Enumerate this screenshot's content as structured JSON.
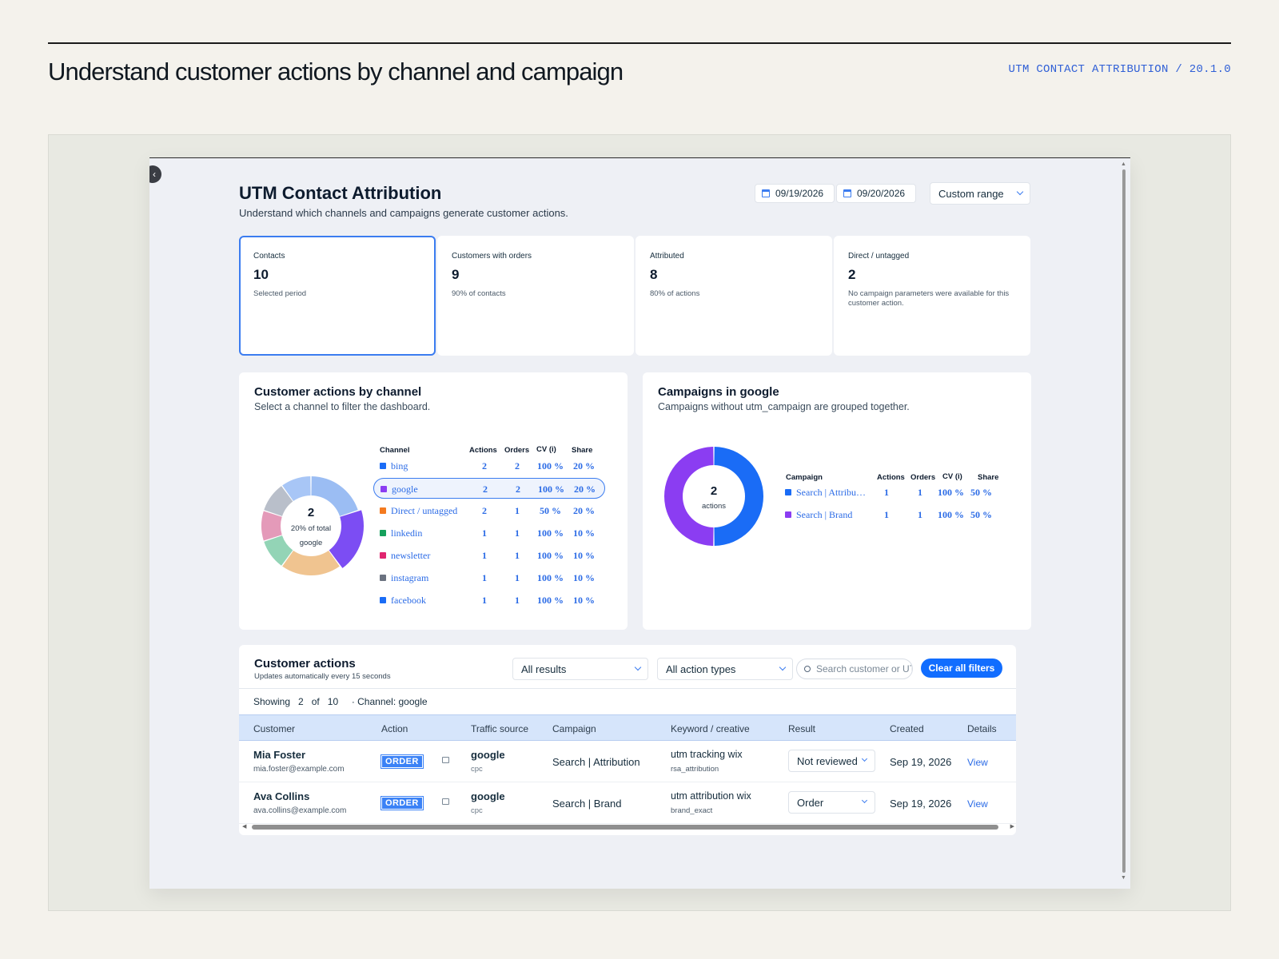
{
  "header": {
    "title": "Understand customer actions by channel and campaign",
    "meta": "UTM CONTACT ATTRIBUTION / 20.1.0"
  },
  "app": {
    "title": "UTM Contact Attribution",
    "subtitle": "Understand which channels and campaigns generate customer actions.",
    "date_from": "09/19/2026",
    "date_to": "09/20/2026",
    "range": "Custom range"
  },
  "stats": [
    {
      "label": "Contacts",
      "value": "10",
      "caption": "Selected period",
      "selected": true
    },
    {
      "label": "Customers with orders",
      "value": "9",
      "caption": "90% of contacts"
    },
    {
      "label": "Attributed",
      "value": "8",
      "caption": "80% of actions"
    },
    {
      "label": "Direct / untagged",
      "value": "2",
      "caption": "No campaign parameters were available for this customer action."
    }
  ],
  "channels_card": {
    "title": "Customer actions by channel",
    "subtitle": "Select a channel to filter the dashboard.",
    "donut_center_value": "2",
    "donut_center_caption": "20% of total",
    "donut_center_channel": "google",
    "columns": [
      "Channel",
      "Actions",
      "Orders",
      "CV (i)",
      "Share"
    ],
    "rows": [
      {
        "channel": "bing",
        "actions": "2",
        "orders": "2",
        "cv": "100 %",
        "share": "20 %",
        "color": "#1a6cf6",
        "donut_color": "#9bbdf3",
        "selected": false
      },
      {
        "channel": "google",
        "actions": "2",
        "orders": "2",
        "cv": "100 %",
        "share": "20 %",
        "color": "#8b3df2",
        "donut_color": "#7c4df3",
        "selected": true
      },
      {
        "channel": "Direct / untagged",
        "actions": "2",
        "orders": "1",
        "cv": "50 %",
        "share": "20 %",
        "color": "#f47a1f",
        "donut_color": "#f0c490",
        "selected": false
      },
      {
        "channel": "linkedin",
        "actions": "1",
        "orders": "1",
        "cv": "100 %",
        "share": "10 %",
        "color": "#15a05c",
        "donut_color": "#93d4b6",
        "selected": false
      },
      {
        "channel": "newsletter",
        "actions": "1",
        "orders": "1",
        "cv": "100 %",
        "share": "10 %",
        "color": "#e0256f",
        "donut_color": "#e49ab9",
        "selected": false
      },
      {
        "channel": "instagram",
        "actions": "1",
        "orders": "1",
        "cv": "100 %",
        "share": "10 %",
        "color": "#6b7280",
        "donut_color": "#b9bfca",
        "selected": false
      },
      {
        "channel": "facebook",
        "actions": "1",
        "orders": "1",
        "cv": "100 %",
        "share": "10 %",
        "color": "#1a6cf6",
        "donut_color": "#a8c6f6",
        "selected": false
      }
    ]
  },
  "campaigns_card": {
    "title": "Campaigns in google",
    "subtitle": "Campaigns without utm_campaign are grouped together.",
    "donut_center_value": "2",
    "donut_center_caption": "actions",
    "columns": [
      "Campaign",
      "Actions",
      "Orders",
      "CV (i)",
      "Share"
    ],
    "rows": [
      {
        "campaign": "Search | Attribu…",
        "actions": "1",
        "orders": "1",
        "cv": "100 %",
        "share": "50 %",
        "color": "#1a6cf6"
      },
      {
        "campaign": "Search | Brand",
        "actions": "1",
        "orders": "1",
        "cv": "100 %",
        "share": "50 %",
        "color": "#8b3df2"
      }
    ]
  },
  "actions_card": {
    "title": "Customer actions",
    "subtitle": "Updates automatically every 15 seconds",
    "results_filter": "All results",
    "type_filter": "All action types",
    "search_placeholder": "Search customer or UTM",
    "clear_label": "Clear all filters",
    "showing_label": "Showing",
    "showing_count": "2",
    "of_label": "of",
    "total_count": "10",
    "active_filter": "· Channel: google",
    "columns": [
      "Customer",
      "Action",
      "Traffic source",
      "Campaign",
      "Keyword / creative",
      "Result",
      "Created",
      "Details"
    ],
    "rows": [
      {
        "name": "Mia Foster",
        "email": "mia.foster@example.com",
        "action": "ORDER",
        "source": "google",
        "medium": "cpc",
        "campaign": "Search | Attribution",
        "keyword": "utm tracking wix",
        "creative": "rsa_attribution",
        "result": "Not reviewed",
        "created": "Sep 19, 2026",
        "details": "View"
      },
      {
        "name": "Ava Collins",
        "email": "ava.collins@example.com",
        "action": "ORDER",
        "source": "google",
        "medium": "cpc",
        "campaign": "Search | Brand",
        "keyword": "utm attribution wix",
        "creative": "brand_exact",
        "result": "Order",
        "created": "Sep 19, 2026",
        "details": "View"
      }
    ]
  }
}
